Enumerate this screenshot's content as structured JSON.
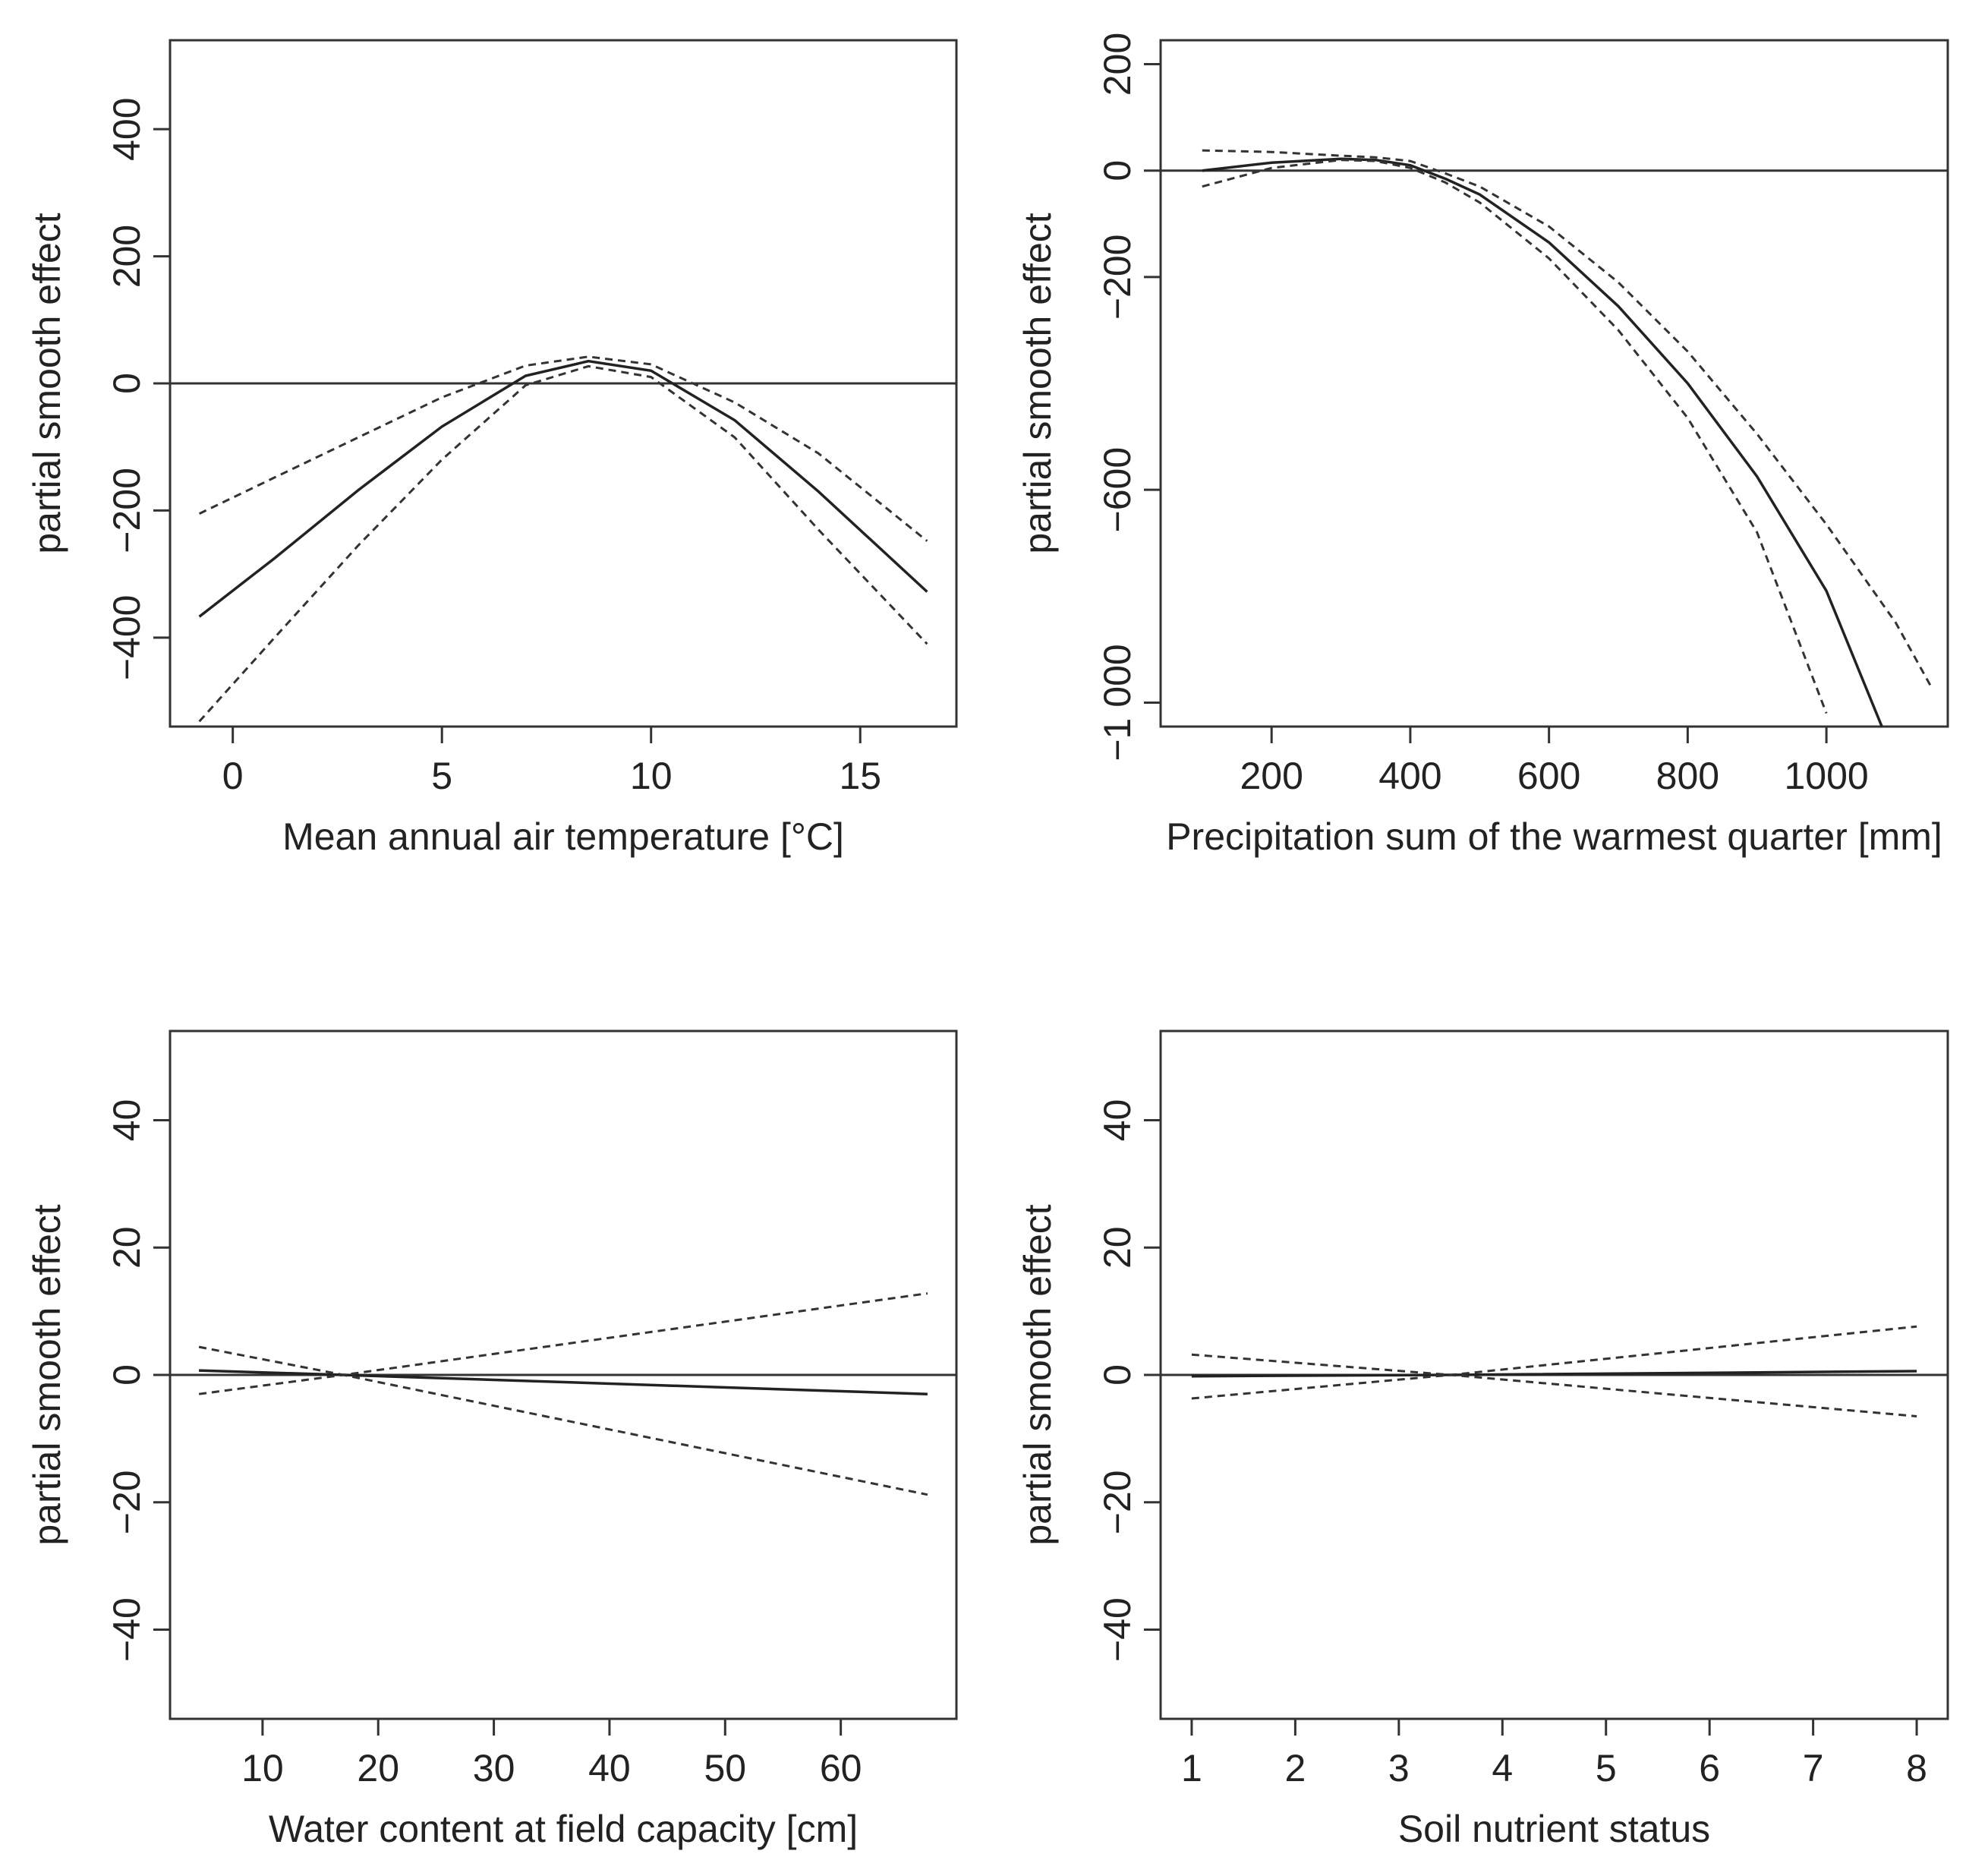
{
  "chart_data": [
    {
      "type": "line",
      "panel": "top-left",
      "xlabel": "Mean annual air temperature [°C]",
      "ylabel": "partial smooth effect",
      "xlim": [
        -1.5,
        17.3
      ],
      "ylim": [
        -540,
        540
      ],
      "xticks": [
        0,
        5,
        10,
        15
      ],
      "xtick_labels": [
        "0",
        "5",
        "10",
        "15"
      ],
      "yticks": [
        -400,
        -200,
        0,
        200,
        400
      ],
      "ytick_labels": [
        "−400",
        "−200",
        "0",
        "200",
        "400"
      ],
      "zero_line": true,
      "series": [
        {
          "name": "fit",
          "style": "solid",
          "x": [
            -0.8,
            1,
            3,
            5,
            7,
            8.5,
            10,
            12,
            14,
            16.6
          ],
          "y": [
            -367,
            -275,
            -168,
            -68,
            12,
            35,
            20,
            -58,
            -170,
            -328
          ]
        },
        {
          "name": "upper",
          "style": "dashed",
          "x": [
            -0.8,
            1,
            3,
            5,
            7,
            8.5,
            10,
            12,
            14,
            16.6
          ],
          "y": [
            -205,
            -148,
            -85,
            -22,
            28,
            42,
            30,
            -30,
            -110,
            -248
          ]
        },
        {
          "name": "lower",
          "style": "dashed",
          "x": [
            -0.8,
            1,
            3,
            5,
            7,
            8.5,
            10,
            12,
            14,
            16.6
          ],
          "y": [
            -532,
            -400,
            -255,
            -120,
            -3,
            27,
            10,
            -85,
            -230,
            -410
          ]
        }
      ]
    },
    {
      "type": "line",
      "panel": "top-right",
      "xlabel": "Precipitation sum of the warmest quarter [mm]",
      "ylabel": "partial smooth effect",
      "xlim": [
        40,
        1175
      ],
      "ylim": [
        -1045,
        245
      ],
      "xticks": [
        200,
        400,
        600,
        800,
        1000
      ],
      "xtick_labels": [
        "200",
        "400",
        "600",
        "800",
        "1000"
      ],
      "yticks": [
        -1000,
        -600,
        -200,
        0,
        200
      ],
      "ytick_labels": [
        "−1 000",
        "−600",
        "−200",
        "0",
        "200"
      ],
      "zero_line": true,
      "series": [
        {
          "name": "fit",
          "style": "solid",
          "x": [
            100,
            200,
            300,
            350,
            400,
            450,
            500,
            600,
            700,
            800,
            900,
            1000,
            1080
          ],
          "y": [
            0,
            15,
            22,
            20,
            10,
            -15,
            -45,
            -135,
            -255,
            -400,
            -575,
            -790,
            -1045
          ]
        },
        {
          "name": "upper",
          "style": "dashed",
          "x": [
            100,
            200,
            300,
            350,
            400,
            450,
            500,
            600,
            700,
            800,
            900,
            1000,
            1100,
            1150
          ],
          "y": [
            38,
            35,
            28,
            25,
            18,
            -5,
            -30,
            -105,
            -210,
            -340,
            -495,
            -665,
            -850,
            -968
          ]
        },
        {
          "name": "lower",
          "style": "dashed",
          "x": [
            100,
            200,
            300,
            350,
            400,
            450,
            500,
            600,
            700,
            800,
            900,
            1000
          ],
          "y": [
            -30,
            5,
            20,
            18,
            5,
            -22,
            -60,
            -165,
            -300,
            -465,
            -680,
            -1020
          ]
        }
      ]
    },
    {
      "type": "line",
      "panel": "bottom-left",
      "xlabel": "Water content at field capacity [cm]",
      "ylabel": "partial smooth effect",
      "xlim": [
        2,
        70
      ],
      "ylim": [
        -54,
        54
      ],
      "xticks": [
        10,
        20,
        30,
        40,
        50,
        60
      ],
      "xtick_labels": [
        "10",
        "20",
        "30",
        "40",
        "50",
        "60"
      ],
      "yticks": [
        -40,
        -20,
        0,
        20,
        40
      ],
      "ytick_labels": [
        "−40",
        "−20",
        "0",
        "20",
        "40"
      ],
      "zero_line": true,
      "series": [
        {
          "name": "fit",
          "style": "solid",
          "x": [
            4.5,
            17,
            67.5
          ],
          "y": [
            0.7,
            0,
            -3.0
          ]
        },
        {
          "name": "upper",
          "style": "dashed",
          "x": [
            4.5,
            17,
            67.5
          ],
          "y": [
            4.4,
            0,
            12.8
          ]
        },
        {
          "name": "lower",
          "style": "dashed",
          "x": [
            4.5,
            17,
            67.5
          ],
          "y": [
            -3.0,
            0,
            -18.8
          ]
        }
      ]
    },
    {
      "type": "line",
      "panel": "bottom-right",
      "xlabel": "Soil nutrient status",
      "ylabel": "partial smooth effect",
      "xlim": [
        0.7,
        8.3
      ],
      "ylim": [
        -54,
        54
      ],
      "xticks": [
        1,
        2,
        3,
        4,
        5,
        6,
        7,
        8
      ],
      "xtick_labels": [
        "1",
        "2",
        "3",
        "4",
        "5",
        "6",
        "7",
        "8"
      ],
      "yticks": [
        -40,
        -20,
        0,
        20,
        40
      ],
      "ytick_labels": [
        "−40",
        "−20",
        "0",
        "20",
        "40"
      ],
      "zero_line": true,
      "series": [
        {
          "name": "fit",
          "style": "solid",
          "x": [
            1,
            3.5,
            8
          ],
          "y": [
            -0.2,
            0,
            0.6
          ]
        },
        {
          "name": "upper",
          "style": "dashed",
          "x": [
            1,
            3.5,
            8
          ],
          "y": [
            3.2,
            0,
            7.6
          ]
        },
        {
          "name": "lower",
          "style": "dashed",
          "x": [
            1,
            3.5,
            8
          ],
          "y": [
            -3.7,
            0,
            -6.5
          ]
        }
      ]
    }
  ]
}
